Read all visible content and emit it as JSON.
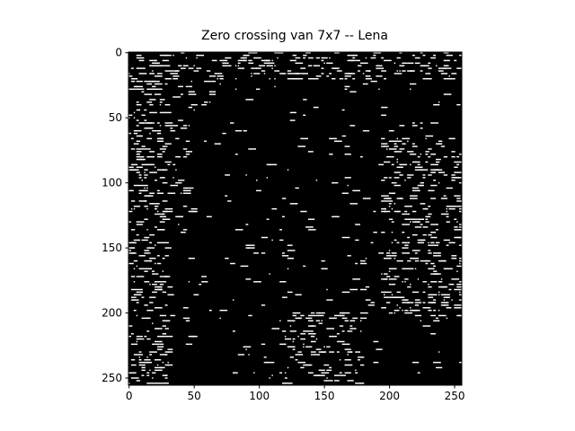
{
  "chart_data": {
    "type": "image",
    "title": "Zero crossing van 7x7 -- Lena",
    "xlim": [
      -0.5,
      255.5
    ],
    "ylim": [
      255.5,
      -0.5
    ],
    "xticks": [
      0,
      50,
      100,
      150,
      200,
      250
    ],
    "yticks": [
      0,
      50,
      100,
      150,
      200,
      250
    ]
  }
}
